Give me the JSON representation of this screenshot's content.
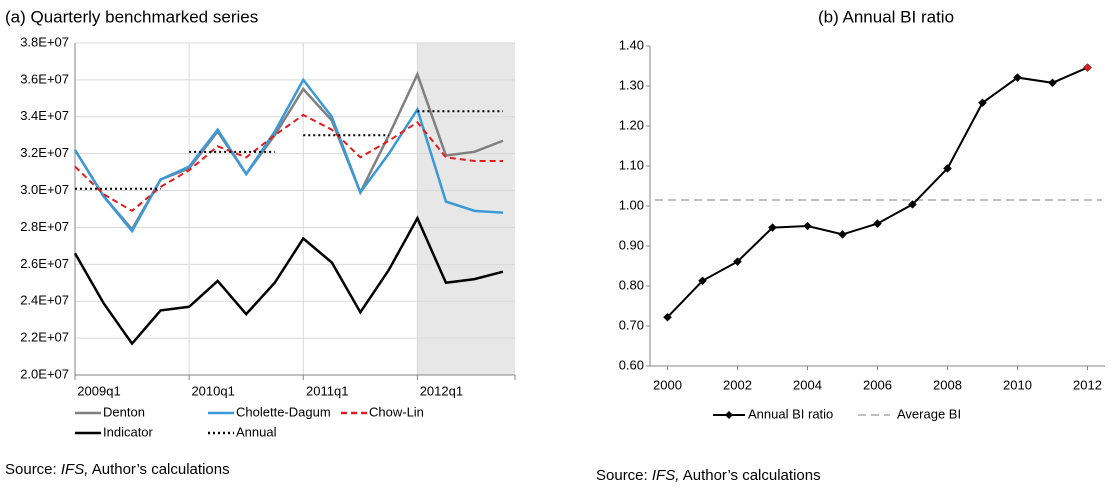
{
  "chart_data": [
    {
      "type": "line",
      "title": "(a) Quarterly benchmarked series",
      "categories": [
        "2009q1",
        null,
        null,
        null,
        "2010q1",
        null,
        null,
        null,
        "2011q1",
        null,
        null,
        null,
        "2012q1",
        null,
        null,
        null
      ],
      "series": [
        {
          "name": "Denton",
          "color": "#808080",
          "dash": "solid",
          "values": [
            32200000,
            29700000,
            27900000,
            30600000,
            31200000,
            33200000,
            30900000,
            33000000,
            35500000,
            33800000,
            29900000,
            33000000,
            36300000,
            31900000,
            32100000,
            32700000
          ]
        },
        {
          "name": "Cholette-Dagum",
          "color": "#3a9ad9",
          "dash": "solid",
          "values": [
            32200000,
            29700000,
            27800000,
            30600000,
            31300000,
            33300000,
            30900000,
            33200000,
            36000000,
            34000000,
            29900000,
            32000000,
            34400000,
            29400000,
            28900000,
            28800000
          ]
        },
        {
          "name": "Chow-Lin",
          "color": "#e41a1c",
          "dash": "dashed",
          "values": [
            31300000,
            29800000,
            28900000,
            30200000,
            31100000,
            32400000,
            31800000,
            33000000,
            34100000,
            33300000,
            31800000,
            32700000,
            33700000,
            31800000,
            31600000,
            31600000
          ]
        },
        {
          "name": "Indicator",
          "color": "#000000",
          "dash": "solid",
          "values": [
            26600000,
            23900000,
            21700000,
            23500000,
            23700000,
            25100000,
            23300000,
            25000000,
            27400000,
            26100000,
            23400000,
            25700000,
            28500000,
            25000000,
            25200000,
            25600000
          ]
        },
        {
          "name": "Annual",
          "color": "#000000",
          "dash": "dotted",
          "step": true,
          "values": [
            30100000,
            30100000,
            30100000,
            30100000,
            32100000,
            32100000,
            32100000,
            32100000,
            33000000,
            33000000,
            33000000,
            33000000,
            34300000,
            34300000,
            34300000,
            34300000
          ]
        }
      ],
      "ylim": [
        20000000,
        38000000
      ],
      "yticks": [
        {
          "value": 20000000,
          "label": "2.0E+07"
        },
        {
          "value": 22000000,
          "label": "2.2E+07"
        },
        {
          "value": 24000000,
          "label": "2.4E+07"
        },
        {
          "value": 26000000,
          "label": "2.6E+07"
        },
        {
          "value": 28000000,
          "label": "2.8E+07"
        },
        {
          "value": 30000000,
          "label": "3.0E+07"
        },
        {
          "value": 32000000,
          "label": "3.2E+07"
        },
        {
          "value": 34000000,
          "label": "3.4E+07"
        },
        {
          "value": 36000000,
          "label": "3.6E+07"
        },
        {
          "value": 38000000,
          "label": "3.8E+07"
        }
      ],
      "grid": true,
      "legend": "bottom",
      "source": [
        "Source: ",
        "IFS,",
        " Author’s calculations"
      ]
    },
    {
      "type": "line",
      "title": "(b) Annual BI ratio",
      "x": [
        2000,
        2001,
        2002,
        2003,
        2004,
        2005,
        2006,
        2007,
        2008,
        2009,
        2010,
        2011,
        2012
      ],
      "series": [
        {
          "name": "Annual BI ratio",
          "color": "#000000",
          "marker": "diamond",
          "last_marker_color": "#e41a1c",
          "values": [
            0.722,
            0.813,
            0.861,
            0.946,
            0.95,
            0.929,
            0.956,
            1.004,
            1.094,
            1.258,
            1.321,
            1.308,
            1.346
          ]
        }
      ],
      "reference_lines": [
        {
          "name": "Average BI",
          "color": "#bfbfbf",
          "value": 1.015
        }
      ],
      "xlim": [
        1999.5,
        2012.5
      ],
      "xticks": [
        2000,
        2002,
        2004,
        2006,
        2008,
        2010,
        2012
      ],
      "ylim": [
        0.6,
        1.4
      ],
      "yticks": [
        {
          "value": 0.6,
          "label": "0.60"
        },
        {
          "value": 0.7,
          "label": "0.70"
        },
        {
          "value": 0.8,
          "label": "0.80"
        },
        {
          "value": 0.9,
          "label": "0.90"
        },
        {
          "value": 1.0,
          "label": "1.00"
        },
        {
          "value": 1.1,
          "label": "1.10"
        },
        {
          "value": 1.2,
          "label": "1.20"
        },
        {
          "value": 1.3,
          "label": "1.30"
        },
        {
          "value": 1.4,
          "label": "1.40"
        }
      ],
      "grid": false,
      "legend": "bottom",
      "source": [
        "Source: ",
        "IFS,",
        " Author’s calculations"
      ]
    }
  ]
}
